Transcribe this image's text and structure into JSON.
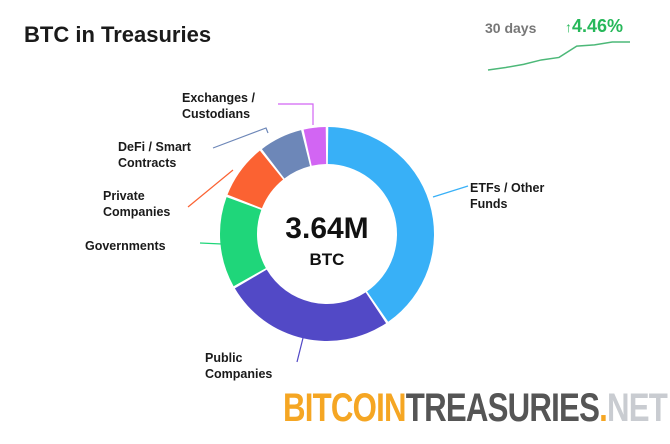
{
  "header": {
    "title": "BTC in Treasuries",
    "period": "30 days",
    "change_arrow": "↑",
    "change": "4.46%",
    "change_color": "#27b85a"
  },
  "sparkline": {
    "trend": "up",
    "values": [
      0,
      0.4,
      0.9,
      1.6,
      2.0,
      3.8,
      4.0,
      4.46,
      4.46
    ]
  },
  "chart_data": {
    "type": "pie",
    "variant": "donut",
    "center_value": "3.64M",
    "center_unit": "BTC",
    "unit": "percent (estimated)",
    "slices": [
      {
        "label": "ETFs / Other Funds",
        "label_lines": [
          "ETFs / Other",
          "Funds"
        ],
        "value": 40.5,
        "color": "#38b0f7"
      },
      {
        "label": "Public Companies",
        "label_lines": [
          "Public",
          "Companies"
        ],
        "value": 26.2,
        "color": "#5249c6"
      },
      {
        "label": "Governments",
        "label_lines": [
          "Governments"
        ],
        "value": 14.1,
        "color": "#1fd67a"
      },
      {
        "label": "Private Companies",
        "label_lines": [
          "Private",
          "Companies"
        ],
        "value": 8.6,
        "color": "#fb6232"
      },
      {
        "label": "DeFi / Smart Contracts",
        "label_lines": [
          "DeFi / Smart",
          "Contracts"
        ],
        "value": 6.9,
        "color": "#6d87b8"
      },
      {
        "label": "Exchanges / Custodians",
        "label_lines": [
          "Exchanges /",
          "Custodians"
        ],
        "value": 3.7,
        "color": "#d265f3"
      }
    ]
  },
  "logo": {
    "part1": "BITCOIN",
    "part2": "TREASURIES",
    "dot": ".",
    "part3": "NET",
    "colors": [
      "#f5a623",
      "#555555",
      "#c9ccd1"
    ]
  }
}
